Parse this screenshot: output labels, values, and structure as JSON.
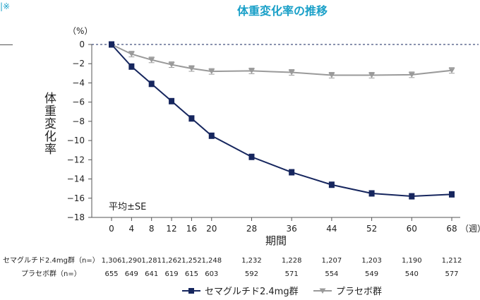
{
  "header": {
    "title": "体重変化率の推移",
    "corner_mark": "|※"
  },
  "chart_data": {
    "type": "line",
    "ylabel": "体重変化率",
    "yunit": "（%）",
    "xlabel": "期間",
    "xunit": "（週）",
    "ylim": [
      -18,
      0
    ],
    "yticks": [
      0,
      -2,
      -4,
      -6,
      -8,
      -10,
      -12,
      -14,
      -16,
      -18
    ],
    "x": [
      0,
      4,
      8,
      12,
      16,
      20,
      28,
      36,
      44,
      52,
      60,
      68
    ],
    "series": [
      {
        "name": "セマグルチド2.4mg群",
        "color": "#16265e",
        "values": [
          0,
          -2.3,
          -4.1,
          -5.9,
          -7.7,
          -9.5,
          -11.7,
          -13.3,
          -14.6,
          -15.5,
          -15.8,
          -15.6
        ]
      },
      {
        "name": "プラセボ群",
        "color": "#9a9a9a",
        "values": [
          0,
          -1.0,
          -1.6,
          -2.1,
          -2.5,
          -2.8,
          -2.75,
          -2.9,
          -3.2,
          -3.2,
          -3.15,
          -2.7
        ]
      }
    ],
    "annotation": "平均±SE",
    "baseline": "dashed at 0",
    "n_table": [
      {
        "label": "セマグルチド2.4mg群（n=）",
        "values": [
          "1,306",
          "1,290",
          "1,281",
          "1,262",
          "1,252",
          "1,248",
          "1,232",
          "1,228",
          "1,207",
          "1,203",
          "1,190",
          "1,212"
        ]
      },
      {
        "label": "プラセボ群（n=）",
        "values": [
          "655",
          "649",
          "641",
          "619",
          "615",
          "603",
          "592",
          "571",
          "554",
          "549",
          "540",
          "577"
        ]
      }
    ]
  }
}
